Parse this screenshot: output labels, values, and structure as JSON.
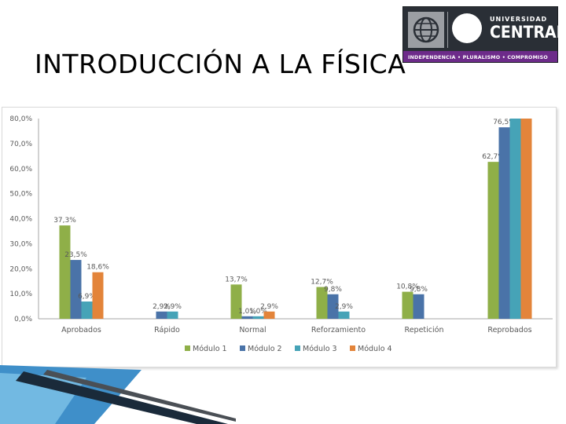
{
  "slide": {
    "title": "INTRODUCCIÓN A LA FÍSICA"
  },
  "logo": {
    "top_text": "UNIVERSIDAD",
    "main_text": "CENTRAL",
    "motto": "INDEPENDENCIA • PLURALISMO • COMPROMISO",
    "emblem_icon": "globe-emblem-icon",
    "ring_icon": "ring-emblem-icon"
  },
  "colors": {
    "series": [
      "#8faf48",
      "#4a73a8",
      "#46a3b7",
      "#e3843a"
    ],
    "grid": "#d9d9d9",
    "text": "#595959"
  },
  "chart_data": {
    "type": "bar",
    "categories": [
      "Aprobados",
      "Rápido",
      "Normal",
      "Reforzamiento",
      "Repetición",
      "Reprobados"
    ],
    "series": [
      {
        "name": "Módulo 1",
        "values": [
          37.3,
          0,
          13.7,
          12.7,
          10.8,
          62.7
        ],
        "labels": [
          "37,3%",
          "",
          "13,7%",
          "12,7%",
          "10,8%",
          "62,7%"
        ]
      },
      {
        "name": "Módulo 2",
        "values": [
          23.5,
          2.9,
          1.0,
          9.8,
          9.8,
          76.5
        ],
        "labels": [
          "23,5%",
          "2,9%",
          "1,0%",
          "9,8%",
          "9,8%",
          "76,5%"
        ]
      },
      {
        "name": "Módulo 3",
        "values": [
          6.9,
          2.9,
          1.0,
          2.9,
          0,
          80.0
        ],
        "labels": [
          "6,9%",
          "2,9%",
          "1,0%",
          "2,9%",
          "",
          ""
        ]
      },
      {
        "name": "Módulo 4",
        "values": [
          18.6,
          0,
          2.9,
          0,
          0,
          80.0
        ],
        "labels": [
          "18,6%",
          "",
          "2,9%",
          "",
          "",
          ""
        ]
      }
    ],
    "yticks": [
      "0,0%",
      "10,0%",
      "20,0%",
      "30,0%",
      "40,0%",
      "50,0%",
      "60,0%",
      "70,0%",
      "80,0%"
    ],
    "ylim": [
      0,
      80
    ],
    "grid": false,
    "legend_position": "bottom",
    "title": "",
    "xlabel": "",
    "ylabel": ""
  }
}
